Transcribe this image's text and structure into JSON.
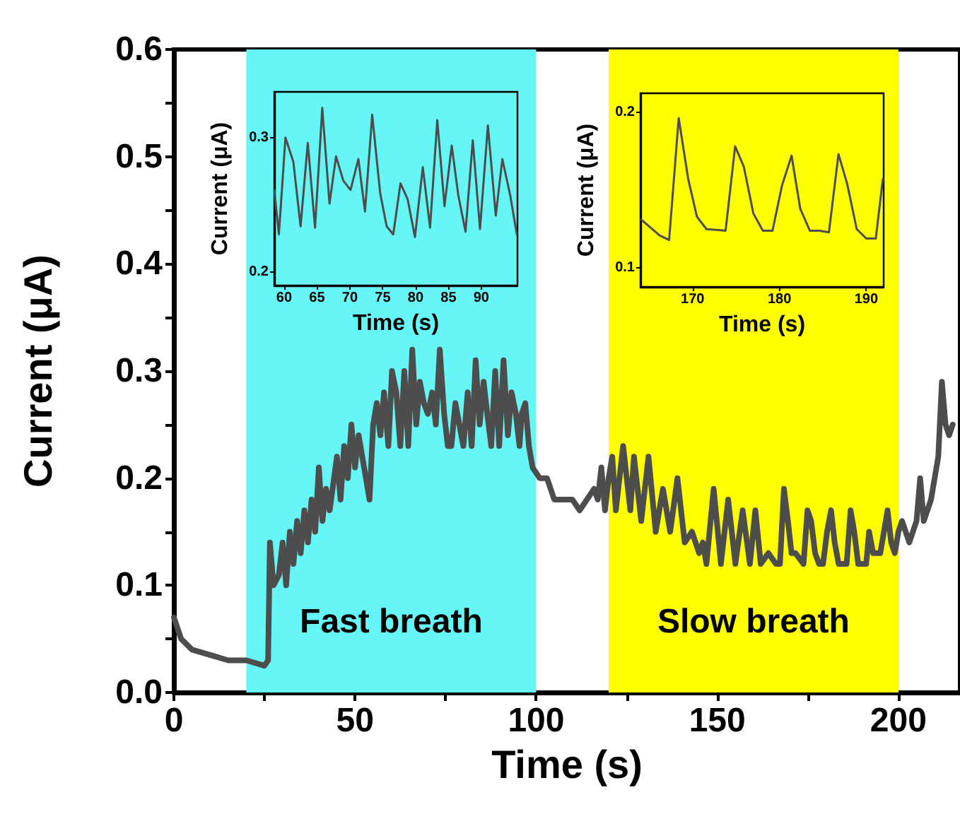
{
  "chart_data": [
    {
      "type": "line",
      "xlabel": "Time (s)",
      "ylabel": "Current (μA)",
      "series": [
        {
          "color": "#4d4d4d",
          "x": [
            0,
            2,
            5,
            10,
            15,
            20,
            25,
            26,
            26.5,
            27.5,
            29,
            30,
            31,
            32,
            33,
            34,
            35,
            36,
            37,
            38,
            39,
            40,
            41,
            42,
            43,
            45,
            46,
            47,
            48,
            49,
            50,
            51,
            52,
            53,
            54,
            55,
            56,
            57,
            58,
            59.2,
            60.2,
            61.4,
            62.5,
            63.6,
            64.7,
            65.8,
            66.9,
            67.9,
            69.0,
            70.1,
            71.3,
            72.3,
            73.4,
            74.6,
            75.6,
            76.6,
            77.7,
            78.8,
            79.9,
            81.1,
            82.2,
            83.3,
            84.4,
            85.5,
            86.5,
            87.6,
            88.7,
            89.8,
            91.0,
            92.2,
            93.2,
            94.4,
            95.4,
            96,
            97,
            98,
            99,
            101,
            103,
            105,
            107,
            110,
            112,
            114,
            116,
            117,
            118,
            119,
            120,
            121,
            122,
            124,
            126,
            127,
            129,
            131,
            133,
            135,
            137,
            139,
            141,
            143,
            145,
            146,
            147,
            149,
            151,
            153,
            155,
            157,
            159,
            160.5,
            162,
            164.1,
            166.2,
            167.3,
            168.4,
            169.5,
            170.5,
            171.6,
            173.8,
            174.9,
            175.9,
            177.0,
            178.1,
            179.2,
            180.3,
            181.4,
            182.4,
            183.5,
            184.6,
            185.7,
            186.8,
            187.8,
            188.9,
            190.0,
            191.1,
            191.9,
            193,
            195,
            197,
            198,
            199,
            200,
            201,
            203,
            205,
            206,
            207,
            209,
            211,
            212,
            213,
            214,
            215
          ],
          "values": [
            0.07,
            0.05,
            0.04,
            0.035,
            0.03,
            0.03,
            0.025,
            0.03,
            0.14,
            0.1,
            0.11,
            0.14,
            0.1,
            0.15,
            0.12,
            0.16,
            0.13,
            0.17,
            0.14,
            0.18,
            0.15,
            0.21,
            0.16,
            0.19,
            0.17,
            0.22,
            0.18,
            0.23,
            0.2,
            0.25,
            0.21,
            0.24,
            0.22,
            0.2,
            0.18,
            0.25,
            0.27,
            0.24,
            0.28,
            0.23,
            0.3,
            0.28,
            0.23,
            0.3,
            0.23,
            0.32,
            0.25,
            0.29,
            0.27,
            0.26,
            0.28,
            0.25,
            0.32,
            0.26,
            0.23,
            0.23,
            0.27,
            0.25,
            0.23,
            0.28,
            0.23,
            0.31,
            0.25,
            0.29,
            0.26,
            0.23,
            0.3,
            0.23,
            0.31,
            0.24,
            0.28,
            0.26,
            0.23,
            0.26,
            0.27,
            0.23,
            0.21,
            0.2,
            0.2,
            0.18,
            0.18,
            0.18,
            0.17,
            0.18,
            0.19,
            0.18,
            0.21,
            0.17,
            0.2,
            0.22,
            0.17,
            0.23,
            0.17,
            0.22,
            0.16,
            0.22,
            0.15,
            0.19,
            0.15,
            0.2,
            0.14,
            0.15,
            0.13,
            0.14,
            0.12,
            0.19,
            0.12,
            0.18,
            0.12,
            0.17,
            0.12,
            0.17,
            0.12,
            0.13,
            0.12,
            0.12,
            0.19,
            0.16,
            0.13,
            0.13,
            0.12,
            0.17,
            0.16,
            0.13,
            0.12,
            0.12,
            0.15,
            0.17,
            0.14,
            0.12,
            0.12,
            0.12,
            0.17,
            0.15,
            0.12,
            0.12,
            0.12,
            0.15,
            0.13,
            0.13,
            0.17,
            0.14,
            0.13,
            0.15,
            0.16,
            0.14,
            0.16,
            0.2,
            0.16,
            0.18,
            0.22,
            0.29,
            0.25,
            0.24,
            0.25
          ]
        }
      ],
      "xlim": [
        0,
        217
      ],
      "ylim": [
        0,
        0.6
      ],
      "xticks": [
        0,
        {
          "value": 25,
          "label": null
        },
        50,
        {
          "value": 75,
          "label": null
        },
        100,
        {
          "value": 125,
          "label": null
        },
        150,
        {
          "value": 175,
          "label": null
        },
        200
      ],
      "yticks": [
        {
          "value": 0,
          "label": "0.0"
        },
        {
          "value": 0.05,
          "label": null
        },
        0.1,
        {
          "value": 0.15,
          "label": null
        },
        0.2,
        {
          "value": 0.25,
          "label": null
        },
        0.3,
        {
          "value": 0.35,
          "label": null
        },
        0.4,
        {
          "value": 0.45,
          "label": null
        },
        0.5,
        {
          "value": 0.55,
          "label": null
        },
        0.6
      ],
      "bands": [
        {
          "axis": "x",
          "from": 20,
          "to": 100,
          "label": "Fast breath",
          "color": "#66f6f6"
        },
        {
          "axis": "x",
          "from": 120,
          "to": 200,
          "label": "Slow breath",
          "color": "#ffff00"
        }
      ],
      "marker": "none",
      "line_style": "solid",
      "grid": false
    },
    {
      "type": "line",
      "xlabel": "Time (s)",
      "ylabel": "Current (μA)",
      "series": [
        {
          "color": "#4d4d4d",
          "x": [
            58.5,
            59.2,
            60.2,
            61.4,
            62.5,
            63.6,
            64.7,
            65.8,
            66.9,
            67.9,
            69.0,
            70.1,
            71.3,
            72.3,
            73.4,
            74.6,
            75.6,
            76.6,
            77.7,
            78.8,
            79.9,
            81.1,
            82.2,
            83.3,
            84.4,
            85.5,
            86.5,
            87.6,
            88.7,
            89.8,
            91.0,
            92.2,
            93.2,
            94.4,
            95.4
          ],
          "values": [
            0.261,
            0.228,
            0.3,
            0.282,
            0.234,
            0.296,
            0.233,
            0.322,
            0.251,
            0.286,
            0.268,
            0.261,
            0.284,
            0.245,
            0.317,
            0.259,
            0.234,
            0.228,
            0.266,
            0.254,
            0.226,
            0.278,
            0.233,
            0.313,
            0.249,
            0.294,
            0.257,
            0.23,
            0.298,
            0.232,
            0.309,
            0.242,
            0.284,
            0.257,
            0.228
          ]
        }
      ],
      "xlim": [
        58.5,
        95.5
      ],
      "ylim": [
        0.19,
        0.334
      ],
      "xticks": [
        60,
        65,
        70,
        75,
        80,
        85,
        90
      ],
      "yticks": [
        0.2,
        0.3
      ],
      "marker": "none",
      "line_style": "solid",
      "grid": false
    },
    {
      "type": "line",
      "xlabel": "Time (s)",
      "ylabel": "Current (μA)",
      "series": [
        {
          "color": "#4d4d4d",
          "x": [
            164.1,
            166.2,
            167.3,
            168.4,
            169.5,
            170.5,
            171.6,
            173.8,
            174.9,
            175.9,
            177.0,
            178.1,
            179.2,
            180.3,
            181.4,
            182.4,
            183.5,
            184.6,
            185.7,
            186.8,
            187.8,
            188.9,
            190.0,
            191.1,
            191.9
          ],
          "values": [
            0.131,
            0.121,
            0.118,
            0.196,
            0.157,
            0.133,
            0.125,
            0.124,
            0.178,
            0.165,
            0.135,
            0.124,
            0.124,
            0.153,
            0.172,
            0.138,
            0.124,
            0.124,
            0.123,
            0.173,
            0.154,
            0.125,
            0.119,
            0.119,
            0.157
          ]
        }
      ],
      "xlim": [
        164,
        192
      ],
      "ylim": [
        0.088,
        0.212
      ],
      "xticks": [
        170,
        180,
        190
      ],
      "yticks": [
        0.1,
        0.2
      ],
      "marker": "none",
      "line_style": "solid",
      "grid": false
    }
  ]
}
